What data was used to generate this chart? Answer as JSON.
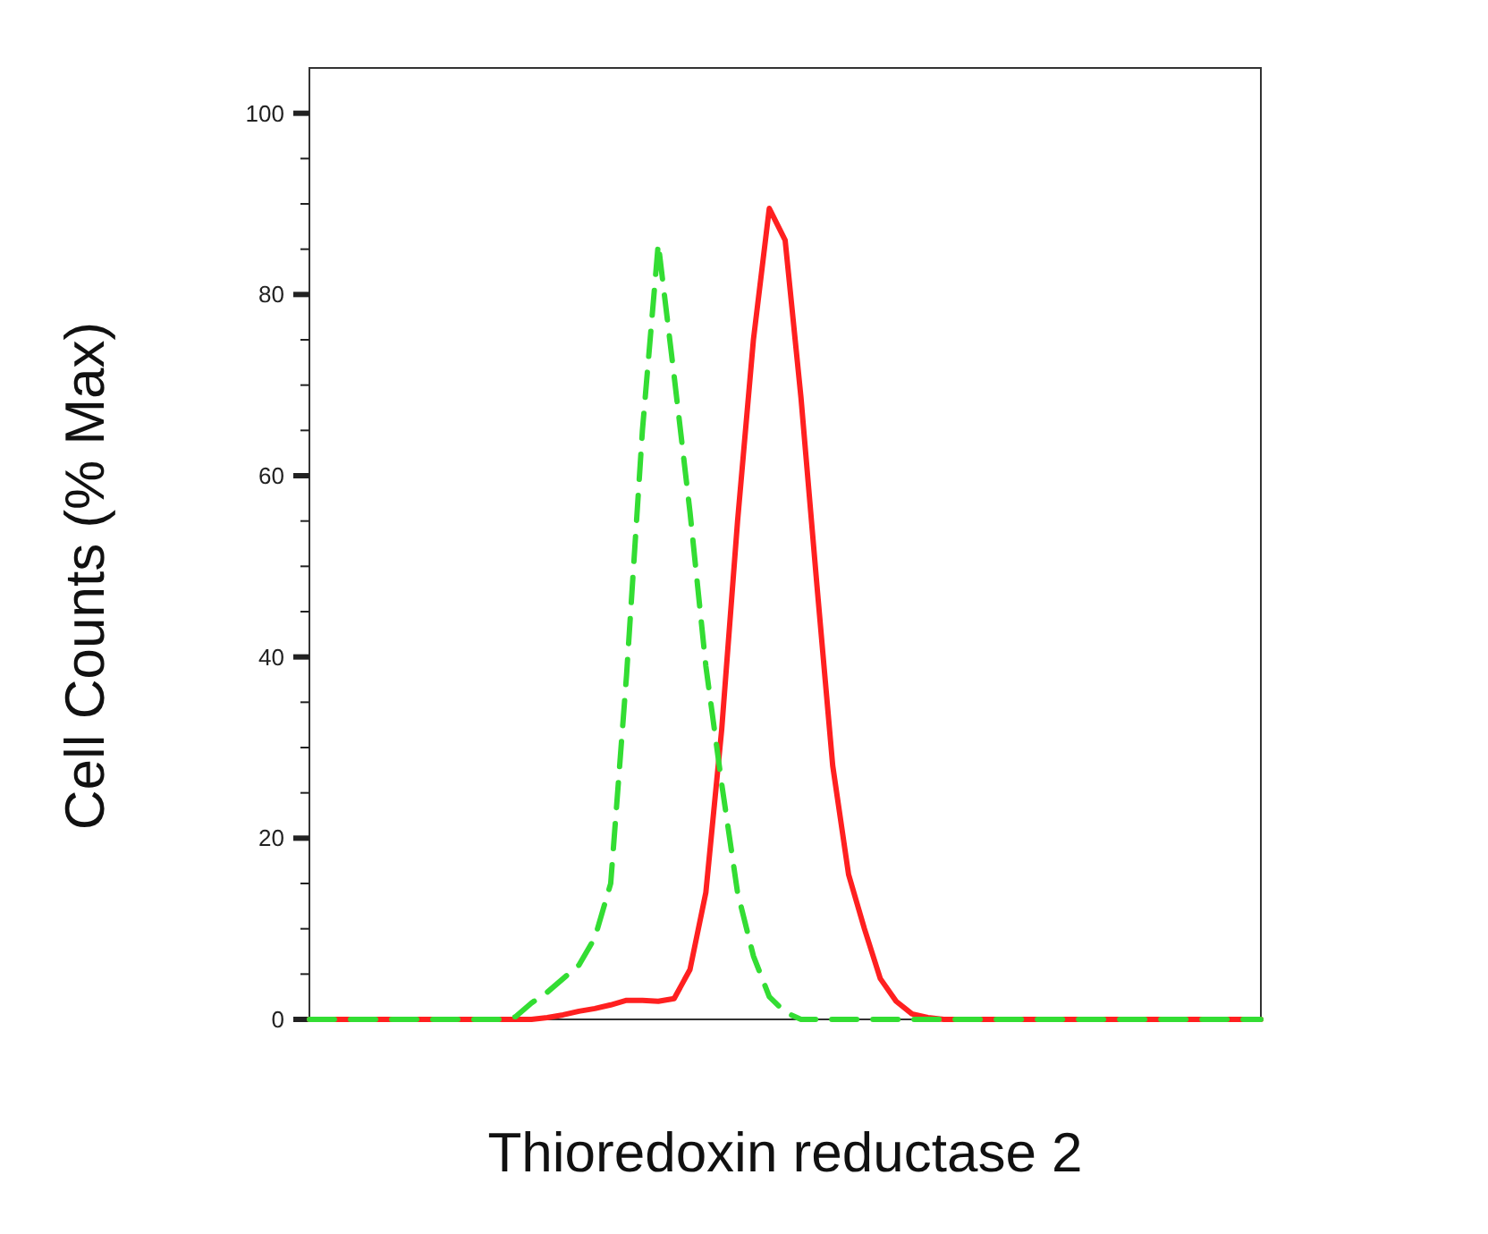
{
  "chart_data": {
    "type": "line",
    "xlabel": "Thioredoxin reductase 2",
    "ylabel": "Cell Counts (% Max)",
    "categories": [
      null,
      null,
      null,
      null,
      null,
      null,
      null,
      null,
      null,
      null,
      null,
      null,
      null,
      null,
      null,
      null,
      null,
      null,
      null,
      null,
      null,
      null,
      null,
      null,
      null,
      null,
      null,
      null,
      null,
      null,
      null,
      null,
      null,
      null,
      null,
      null,
      null,
      null,
      null,
      null,
      null,
      null,
      null,
      null,
      null,
      null,
      null,
      null,
      null,
      null,
      null,
      null,
      null,
      null,
      null,
      null,
      null,
      null,
      null,
      null,
      null
    ],
    "ylim": [
      0,
      105
    ],
    "yticks": [
      0,
      {
        "value": 5,
        "label": null
      },
      {
        "value": 10,
        "label": null
      },
      {
        "value": 15,
        "label": null
      },
      20,
      {
        "value": 25,
        "label": null
      },
      {
        "value": 30,
        "label": null
      },
      {
        "value": 35,
        "label": null
      },
      40,
      {
        "value": 45,
        "label": null
      },
      {
        "value": 50,
        "label": null
      },
      {
        "value": 55,
        "label": null
      },
      60,
      {
        "value": 65,
        "label": null
      },
      {
        "value": 70,
        "label": null
      },
      {
        "value": 75,
        "label": null
      },
      80,
      {
        "value": 85,
        "label": null
      },
      {
        "value": 90,
        "label": null
      },
      {
        "value": 95,
        "label": null
      },
      100
    ],
    "grid": false,
    "marker": "none",
    "series": [
      {
        "color": "#33dd33",
        "line_style": "dashed",
        "values": [
          0,
          0,
          0,
          0,
          0,
          0,
          0,
          0,
          0,
          0,
          0,
          0,
          0,
          0.3,
          1.8,
          3,
          4.5,
          6,
          9,
          15,
          38,
          65,
          85.6,
          71,
          56,
          39,
          26,
          14,
          7,
          2.5,
          0.8,
          0,
          0,
          0,
          0,
          0,
          0,
          0,
          0,
          0,
          0,
          0,
          0,
          0,
          0,
          0,
          0,
          0,
          0,
          0,
          0,
          0,
          0,
          0,
          0,
          0,
          0,
          0,
          0,
          0,
          0
        ]
      },
      {
        "color": "#ff2020",
        "line_style": "solid",
        "values": [
          0,
          0,
          0,
          0,
          0,
          0,
          0,
          0,
          0,
          0,
          0,
          0,
          0,
          0,
          0,
          0.2,
          0.5,
          0.9,
          1.2,
          1.6,
          2.1,
          2.1,
          2,
          2.3,
          5.5,
          14,
          32,
          55,
          75,
          89.5,
          86,
          68.6,
          48,
          28,
          16,
          10,
          4.5,
          2,
          0.6,
          0.2,
          0,
          0,
          0,
          0,
          0,
          0,
          0,
          0,
          0,
          0,
          0,
          0,
          0,
          0,
          0,
          0,
          0,
          0,
          0,
          0,
          0
        ]
      }
    ]
  }
}
